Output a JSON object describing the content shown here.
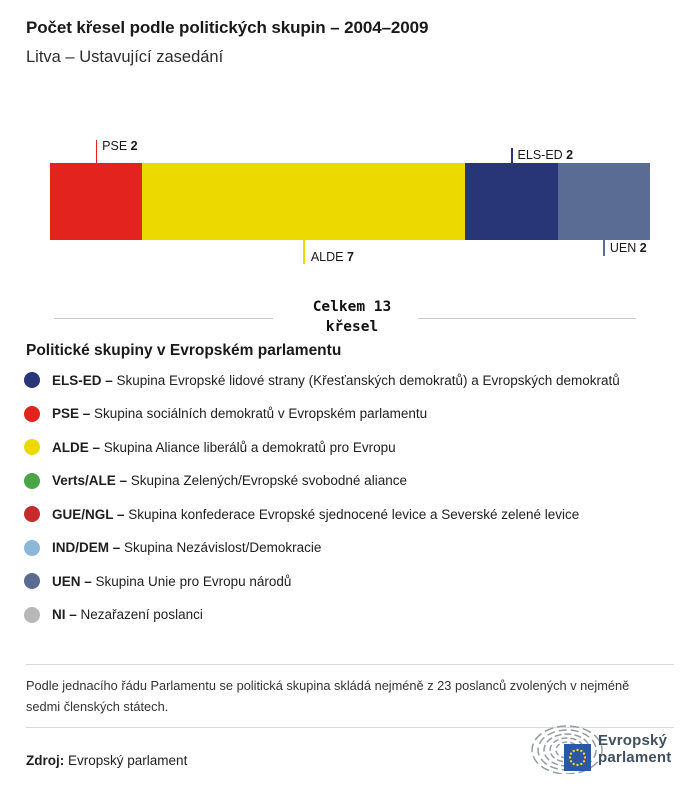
{
  "header": {
    "title": "Počet křesel podle politických skupin – 2004–2009",
    "subtitle": "Litva – Ustavující zasedání"
  },
  "chart_data": {
    "type": "bar",
    "variant": "stacked-horizontal-single-bar",
    "title": "Počet křesel podle politických skupin – 2004–2009",
    "subtitle": "Litva – Ustavující zasedání",
    "total_seats": 13,
    "total_label_line1": "Celkem 13",
    "total_label_line2": "křesel",
    "categories": [
      "PSE",
      "ALDE",
      "ELS-ED",
      "UEN"
    ],
    "values": [
      2,
      7,
      2,
      2
    ],
    "segments": [
      {
        "group": "PSE",
        "seats": 2,
        "color": "#e2231e",
        "label_position": "above"
      },
      {
        "group": "ALDE",
        "seats": 7,
        "color": "#ecd900",
        "label_position": "below"
      },
      {
        "group": "ELS-ED",
        "seats": 2,
        "color": "#283577",
        "label_position": "above"
      },
      {
        "group": "UEN",
        "seats": 2,
        "color": "#5a6b94",
        "label_position": "below"
      }
    ]
  },
  "legend": {
    "heading": "Politické skupiny v Evropském parlamentu",
    "separator": "–",
    "items": [
      {
        "label": "ELS-ED",
        "color": "#283577",
        "desc": "Skupina Evropské lidové strany (Křesťanských demokratů) a Evropských demokratů"
      },
      {
        "label": "PSE",
        "color": "#e2231e",
        "desc": "Skupina sociálních demokratů v Evropském parlamentu"
      },
      {
        "label": "ALDE",
        "color": "#ecd900",
        "desc": "Skupina Aliance liberálů a demokratů pro Evropu"
      },
      {
        "label": "Verts/ALE",
        "color": "#4aa546",
        "desc": "Skupina Zelených/Evropské svobodné aliance"
      },
      {
        "label": "GUE/NGL",
        "color": "#c52a2d",
        "desc": "Skupina konfederace Evropské sjednocené levice a Severské zelené levice"
      },
      {
        "label": "IND/DEM",
        "color": "#8cb7d9",
        "desc": "Skupina Nezávislost/Demokracie"
      },
      {
        "label": "UEN",
        "color": "#5a6b94",
        "desc": "Skupina Unie pro Evropu národů"
      },
      {
        "label": "NI",
        "color": "#b8b8b8",
        "desc": "Nezařazení poslanci"
      }
    ]
  },
  "footnote": "Podle jednacího řádu Parlamentu se politická skupina skládá nejméně z 23 poslanců zvolených v nejméně sedmi členských státech.",
  "source": {
    "label": "Zdroj:",
    "value": "Evropský parlament"
  },
  "logo": {
    "line1": "Evropský",
    "line2": "parlament",
    "icon": "european-parliament-hemicycle-flag-icon"
  }
}
